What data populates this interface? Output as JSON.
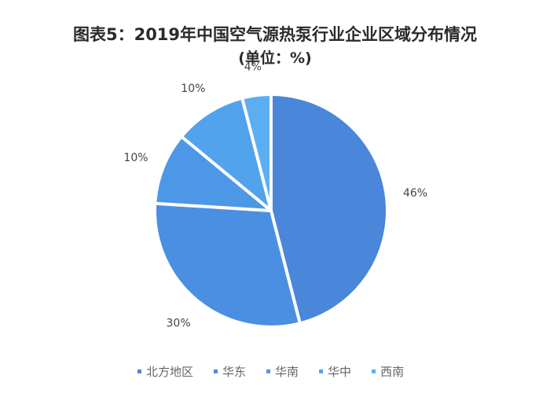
{
  "chart_data": {
    "type": "pie",
    "title": "图表5：2019年中国空气源热泵行业企业区域分布情况",
    "subtitle": "(单位：%)",
    "legend_position": "bottom",
    "slices": [
      {
        "name": "北方地区",
        "value": 46,
        "label": "46%",
        "color": "#4a86d9"
      },
      {
        "name": "华东",
        "value": 30,
        "label": "30%",
        "color": "#4a8fe2"
      },
      {
        "name": "华南",
        "value": 10,
        "label": "10%",
        "color": "#4d98e6"
      },
      {
        "name": "华中",
        "value": 10,
        "label": "10%",
        "color": "#52a2ec"
      },
      {
        "name": "西南",
        "value": 4,
        "label": "4%",
        "color": "#5caef2"
      }
    ]
  }
}
